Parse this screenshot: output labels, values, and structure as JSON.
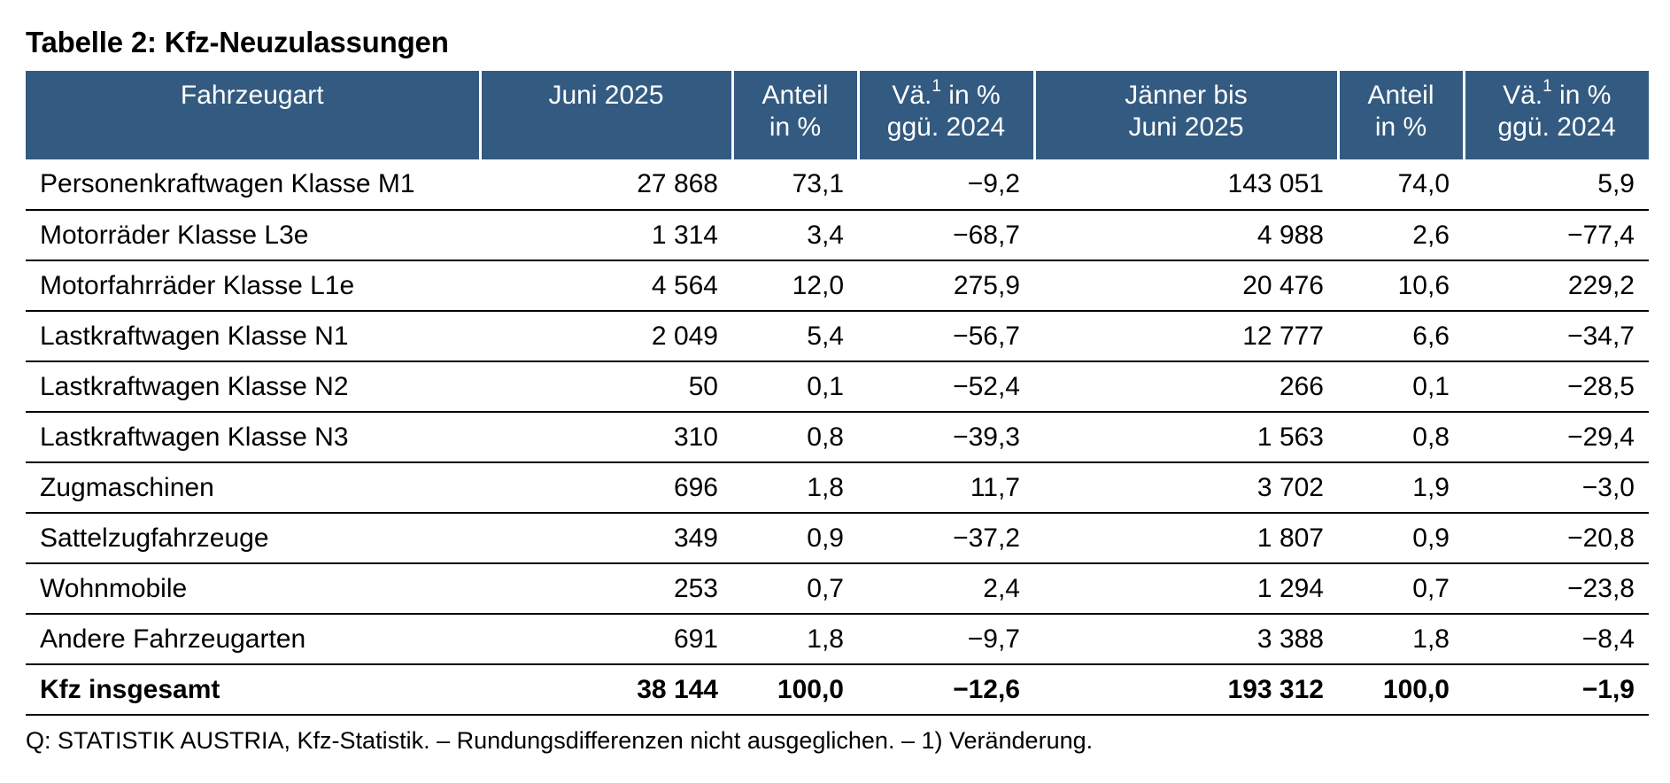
{
  "title": "Tabelle 2: Kfz-Neuzulassungen",
  "header": {
    "vehicle_type": "Fahrzeugart",
    "month": "Juni 2025",
    "share_l1": "Anteil",
    "share_l2": "in %",
    "change_l1a": "Vä.",
    "change_sup": "1",
    "change_l1b": " in %",
    "change_l2": "ggü. 2024",
    "ytd_l1": "Jänner bis",
    "ytd_l2": "Juni 2025",
    "share2_l1": "Anteil",
    "share2_l2": "in %",
    "change2_l1a": "Vä.",
    "change2_sup": "1",
    "change2_l1b": " in %",
    "change2_l2": "ggü. 2024"
  },
  "rows": [
    {
      "label": "Personenkraftwagen Klasse M1",
      "month": "27 868",
      "share": "73,1",
      "change": "−9,2",
      "ytd": "143 051",
      "share_ytd": "74,0",
      "change_ytd": "5,9"
    },
    {
      "label": "Motorräder Klasse L3e",
      "month": "1 314",
      "share": "3,4",
      "change": "−68,7",
      "ytd": "4 988",
      "share_ytd": "2,6",
      "change_ytd": "−77,4"
    },
    {
      "label": "Motorfahrräder Klasse L1e",
      "month": "4 564",
      "share": "12,0",
      "change": "275,9",
      "ytd": "20 476",
      "share_ytd": "10,6",
      "change_ytd": "229,2"
    },
    {
      "label": "Lastkraftwagen Klasse N1",
      "month": "2 049",
      "share": "5,4",
      "change": "−56,7",
      "ytd": "12 777",
      "share_ytd": "6,6",
      "change_ytd": "−34,7"
    },
    {
      "label": "Lastkraftwagen Klasse N2",
      "month": "50",
      "share": "0,1",
      "change": "−52,4",
      "ytd": "266",
      "share_ytd": "0,1",
      "change_ytd": "−28,5"
    },
    {
      "label": "Lastkraftwagen Klasse N3",
      "month": "310",
      "share": "0,8",
      "change": "−39,3",
      "ytd": "1 563",
      "share_ytd": "0,8",
      "change_ytd": "−29,4"
    },
    {
      "label": "Zugmaschinen",
      "month": "696",
      "share": "1,8",
      "change": "11,7",
      "ytd": "3 702",
      "share_ytd": "1,9",
      "change_ytd": "−3,0"
    },
    {
      "label": "Sattelzugfahrzeuge",
      "month": "349",
      "share": "0,9",
      "change": "−37,2",
      "ytd": "1 807",
      "share_ytd": "0,9",
      "change_ytd": "−20,8"
    },
    {
      "label": "Wohnmobile",
      "month": "253",
      "share": "0,7",
      "change": "2,4",
      "ytd": "1 294",
      "share_ytd": "0,7",
      "change_ytd": "−23,8"
    },
    {
      "label": "Andere Fahrzeugarten",
      "month": "691",
      "share": "1,8",
      "change": "−9,7",
      "ytd": "3 388",
      "share_ytd": "1,8",
      "change_ytd": "−8,4"
    }
  ],
  "total": {
    "label": "Kfz insgesamt",
    "month": "38 144",
    "share": "100,0",
    "change": "−12,6",
    "ytd": "193 312",
    "share_ytd": "100,0",
    "change_ytd": "−1,9"
  },
  "footnote": "Q: STATISTIK AUSTRIA, Kfz-Statistik. – Rundungsdifferenzen nicht ausgeglichen. – 1) Veränderung.",
  "colors": {
    "header_background": "#335a80",
    "header_text": "#ffffff",
    "rule": "#000000"
  }
}
